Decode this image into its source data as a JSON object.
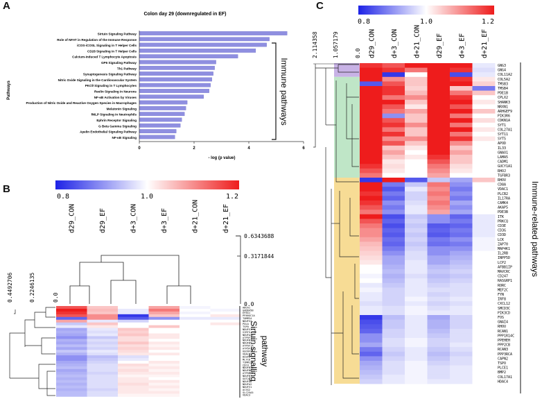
{
  "figure": {
    "panelA": {
      "letter": "A",
      "title": "Colon day 29 (downregulated in  EF)",
      "side_label": "Immune pathways",
      "chart_data": {
        "type": "bar",
        "title": "Colon day 29 (downregulated in  EF)",
        "xlabel": "- log (p value)",
        "ylabel": "Pathways",
        "xlim": [
          0,
          6
        ],
        "xticks": [
          "0",
          "2",
          "4",
          "6"
        ],
        "orientation": "horizontal",
        "bar_color": "#8f8fe0",
        "categories": [
          "Sirtuin Signaling Pathway",
          "Role of NFAT in Regulation of the Immune Response",
          "iCOS-iCOSL Signaling in T Helper Cells",
          "CD28 Signaling in T Helper Cells",
          "Calcium-induced T Lymphocyte Apoptosis",
          "GP6 Signaling Pathway",
          "Th1 Pathway",
          "Synaptogenesis Signaling Pathway",
          "Nitric Oxide Signaling in the Cardiovascular System",
          "PKCθ Signaling in T Lymphocytes",
          "Reelin Signaling in Neurons",
          "NF-κB Activation by Viruses",
          "Production of Nitric Oxide and Reactive Oxygen Species in Macrophages",
          "Melatonin Signaling",
          "fMLP Signaling in Neutrophils",
          "Ephrin Receptor Signaling",
          "G Beta Gamma Signaling",
          "Apelin Endothelial Signaling Pathway",
          "NF-κB Signaling"
        ],
        "values": [
          5.4,
          4.75,
          4.65,
          4.25,
          3.6,
          2.8,
          2.75,
          2.7,
          2.65,
          2.6,
          2.55,
          2.35,
          1.75,
          1.7,
          1.65,
          1.55,
          1.5,
          1.35,
          1.3
        ]
      }
    },
    "panelB": {
      "letter": "B",
      "side_label_1": "Sirtuin signalling",
      "side_label_2": "pathway",
      "chart_data": {
        "type": "heatmap",
        "colorbar": {
          "min_label": "0.8",
          "mid_label": "1.0",
          "max_label": "1.2",
          "low_color": "#1d22e6",
          "mid_color": "#ffffff",
          "high_color": "#ee1c1c"
        },
        "columns": [
          "d29_CON",
          "d29_EF",
          "d+3_CON",
          "d+3_EF",
          "d+21_CON",
          "d+21_EF"
        ],
        "col_tree_labels": [
          "0.6343688",
          "0.3171844",
          "0.0"
        ],
        "row_tree_labels": [
          "0.4492706",
          "0.2246135",
          "0.0"
        ],
        "rows": [
          "ABCA1",
          "GADD45B",
          "EPAS1",
          "PPARGC1A",
          "TOMM34",
          "NDUFS2",
          "POLA",
          "TSPO",
          "NDUFS1",
          "SIRT5",
          "NDUFA11",
          "ATP5F1",
          "NDUFB1",
          "NDUFB5",
          "ATP5F1A",
          "ATP5F1D",
          "UQCRFS1",
          "VDAC1",
          "DUSP6",
          "MLYCD",
          "TIMM17A",
          "CDC4",
          "NDUFB11",
          "NDUFB6",
          "ATP5ME1",
          "NDUFB7",
          "GOT2",
          "NDUFA8",
          "NDUFA2",
          "NDUFV1",
          "ACSS2",
          "SLC25A5",
          "VDAC3"
        ],
        "values": [
          [
            1.15,
            1.05,
            1.0,
            1.08,
            0.99,
            1.0
          ],
          [
            1.2,
            1.06,
            0.98,
            1.12,
            1.0,
            0.99
          ],
          [
            1.18,
            1.05,
            0.98,
            1.08,
            0.99,
            1.0
          ],
          [
            1.15,
            1.1,
            0.82,
            1.05,
            1.0,
            1.02
          ],
          [
            0.86,
            1.1,
            0.85,
            0.9,
            0.98,
            0.98
          ],
          [
            1.08,
            0.98,
            0.96,
            1.0,
            1.0,
            1.0
          ],
          [
            0.95,
            1.05,
            1.0,
            1.0,
            1.0,
            1.02
          ],
          [
            0.98,
            1.02,
            1.0,
            1.05,
            1.0,
            1.0
          ],
          [
            0.92,
            0.98,
            1.05,
            1.0,
            1.0,
            1.0
          ],
          [
            0.93,
            0.97,
            1.04,
            1.0,
            1.0,
            1.0
          ],
          [
            0.92,
            0.98,
            1.05,
            1.02,
            1.0,
            1.0
          ],
          [
            0.9,
            0.95,
            1.03,
            1.02,
            1.0,
            1.0
          ],
          [
            0.93,
            0.97,
            1.03,
            1.0,
            1.0,
            1.0
          ],
          [
            0.92,
            0.96,
            1.05,
            1.02,
            1.0,
            1.0
          ],
          [
            0.94,
            0.97,
            1.03,
            1.01,
            1.0,
            1.0
          ],
          [
            0.92,
            0.96,
            1.04,
            1.02,
            1.0,
            1.0
          ],
          [
            0.95,
            0.98,
            1.03,
            1.0,
            1.0,
            1.0
          ],
          [
            0.93,
            0.97,
            1.02,
            1.02,
            1.0,
            1.0
          ],
          [
            0.9,
            0.94,
            0.97,
            1.0,
            1.0,
            1.0
          ],
          [
            0.9,
            0.95,
            0.98,
            1.0,
            1.0,
            1.0
          ],
          [
            0.92,
            0.96,
            1.0,
            1.02,
            1.0,
            1.0
          ],
          [
            0.93,
            0.97,
            1.03,
            1.01,
            1.0,
            1.0
          ],
          [
            0.94,
            0.97,
            1.02,
            1.02,
            1.0,
            1.0
          ],
          [
            0.92,
            0.97,
            1.03,
            1.01,
            1.0,
            1.0
          ],
          [
            0.93,
            0.96,
            1.02,
            1.02,
            1.0,
            1.0
          ],
          [
            0.94,
            0.97,
            1.01,
            1.01,
            1.0,
            1.0
          ],
          [
            0.93,
            0.97,
            1.02,
            1.0,
            1.0,
            1.0
          ],
          [
            0.94,
            0.97,
            1.02,
            1.02,
            1.0,
            1.0
          ],
          [
            0.93,
            0.97,
            1.03,
            1.01,
            1.0,
            1.0
          ],
          [
            0.94,
            0.97,
            1.02,
            1.02,
            1.0,
            1.0
          ],
          [
            0.93,
            0.96,
            1.02,
            1.01,
            1.0,
            1.0
          ],
          [
            0.94,
            0.97,
            1.02,
            1.02,
            1.0,
            1.0
          ],
          [
            0.94,
            0.97,
            1.01,
            1.01,
            1.0,
            1.0
          ]
        ]
      }
    },
    "panelC": {
      "letter": "C",
      "side_label": "Immune-related pathways",
      "chart_data": {
        "type": "heatmap",
        "colorbar": {
          "min_label": "0.8",
          "mid_label": "1.0",
          "max_label": "1.2",
          "low_color": "#1d22e6",
          "mid_color": "#ffffff",
          "high_color": "#ee1c1c"
        },
        "columns": [
          "d29_CON",
          "d+3_CON",
          "d+21_CON",
          "d29_EF",
          "d+3_EF",
          "d+21_EF"
        ],
        "row_tree_labels": [
          "2.114358",
          "1.057179",
          "0.0"
        ],
        "cluster_colors": [
          "#c8b2e6",
          "#bfe6c7",
          "#f7dc95"
        ],
        "rows": [
          "GNG3",
          "GNG4",
          "COL11A2",
          "COL5A2",
          "TMSB3",
          "TMSB4",
          "PDE1B",
          "CPLX2",
          "SHANK3",
          "NRXN1",
          "ARHGEF9",
          "PIK3R6",
          "CDKN1A",
          "SYT1",
          "COL27A1",
          "SYT11",
          "SYT5",
          "APOD",
          "IL33",
          "GNAO1",
          "LAMA5",
          "CADM1",
          "GUCY1A1",
          "RHOJ",
          "TGFBR3",
          "RHOV",
          "CD8A",
          "VDAC1",
          "PLCB2",
          "IL17RA",
          "CAMK4",
          "AKAP5",
          "PDE3B",
          "ITK",
          "PRKCQ",
          "CD3E",
          "CD3G",
          "CD3D",
          "LCK",
          "ZAP70",
          "MAP4K1",
          "IL2RB",
          "INPP5D",
          "LCP2",
          "AFBB1IP",
          "MAVCRC",
          "CD247",
          "RASGRP1",
          "RORC",
          "MEF2C",
          "FYN",
          "IRF8",
          "CXCL12",
          "SMCD3C",
          "PIK3CD",
          "FOS",
          "GNAI4",
          "RHOU",
          "RCAN1",
          "PPP1R14C",
          "PPEHEH",
          "PPP2CB",
          "RCAN3",
          "PPP3RCA",
          "CAPN2",
          "TSPO",
          "PLCE1",
          "BMP2",
          "COL17A1",
          "HDAC4"
        ],
        "values": [
          [
            1.18,
            1.15,
            1.2,
            1.2,
            1.2,
            0.98
          ],
          [
            1.2,
            1.18,
            1.12,
            1.2,
            1.18,
            0.97
          ],
          [
            1.2,
            0.82,
            1.0,
            1.2,
            0.84,
            0.98
          ],
          [
            1.2,
            1.1,
            1.05,
            1.2,
            1.18,
            1.02
          ],
          [
            0.85,
            1.15,
            1.05,
            1.2,
            1.2,
            1.04
          ],
          [
            1.2,
            1.18,
            1.04,
            1.2,
            1.05,
            0.88
          ],
          [
            1.2,
            1.18,
            1.06,
            1.2,
            1.12,
            1.05
          ],
          [
            1.2,
            1.12,
            1.1,
            1.2,
            1.18,
            1.0
          ],
          [
            1.2,
            1.2,
            1.05,
            1.2,
            1.2,
            1.02
          ],
          [
            1.2,
            1.15,
            1.02,
            1.2,
            1.15,
            1.0
          ],
          [
            1.2,
            1.12,
            1.08,
            1.2,
            1.2,
            1.05
          ],
          [
            1.2,
            0.9,
            1.05,
            1.2,
            1.12,
            1.0
          ],
          [
            1.2,
            1.15,
            1.05,
            1.2,
            1.2,
            1.03
          ],
          [
            1.2,
            1.18,
            1.1,
            1.2,
            1.12,
            1.0
          ],
          [
            1.2,
            1.12,
            1.05,
            1.2,
            1.2,
            1.02
          ],
          [
            1.2,
            1.18,
            1.05,
            1.2,
            1.12,
            1.0
          ],
          [
            1.2,
            1.1,
            1.1,
            1.2,
            1.18,
            1.02
          ],
          [
            1.2,
            1.15,
            1.05,
            1.2,
            1.1,
            1.0
          ],
          [
            1.2,
            1.05,
            1.02,
            1.2,
            1.05,
            1.0
          ],
          [
            1.2,
            1.08,
            1.0,
            1.2,
            1.08,
            1.0
          ],
          [
            1.2,
            1.05,
            1.02,
            1.18,
            1.05,
            1.0
          ],
          [
            1.2,
            1.02,
            1.0,
            1.15,
            1.05,
            1.0
          ],
          [
            1.18,
            1.03,
            1.0,
            1.12,
            1.03,
            1.0
          ],
          [
            1.15,
            1.02,
            1.0,
            1.1,
            1.02,
            1.0
          ],
          [
            1.12,
            1.0,
            1.0,
            1.08,
            1.0,
            1.0
          ],
          [
            0.82,
            1.2,
            0.85,
            0.95,
            0.92,
            1.05
          ],
          [
            1.2,
            0.88,
            0.95,
            1.12,
            0.9,
            1.0
          ],
          [
            1.2,
            0.85,
            0.98,
            1.1,
            0.88,
            1.0
          ],
          [
            1.18,
            0.88,
            0.96,
            1.12,
            0.9,
            1.0
          ],
          [
            1.2,
            0.86,
            0.96,
            1.1,
            0.88,
            1.0
          ],
          [
            1.18,
            0.9,
            0.97,
            1.12,
            0.92,
            1.0
          ],
          [
            1.15,
            0.88,
            0.98,
            1.1,
            0.9,
            1.0
          ],
          [
            1.12,
            0.9,
            0.98,
            1.08,
            0.92,
            1.0
          ],
          [
            1.2,
            0.84,
            0.95,
            0.9,
            0.86,
            0.98
          ],
          [
            1.15,
            0.86,
            0.96,
            0.9,
            0.88,
            0.98
          ],
          [
            1.12,
            0.84,
            0.95,
            0.85,
            0.86,
            0.98
          ],
          [
            1.1,
            0.86,
            0.96,
            0.86,
            0.88,
            0.98
          ],
          [
            1.1,
            0.85,
            0.95,
            0.85,
            0.87,
            0.98
          ],
          [
            1.08,
            0.87,
            0.96,
            0.88,
            0.9,
            0.99
          ],
          [
            1.06,
            0.86,
            0.95,
            0.87,
            0.88,
            0.99
          ],
          [
            1.05,
            0.88,
            0.96,
            0.9,
            0.9,
            0.99
          ],
          [
            1.04,
            0.9,
            0.97,
            0.9,
            0.92,
            1.0
          ],
          [
            1.03,
            0.92,
            0.97,
            0.92,
            0.93,
            1.0
          ],
          [
            1.02,
            0.92,
            0.98,
            0.92,
            0.94,
            1.0
          ],
          [
            1.0,
            0.93,
            0.98,
            0.94,
            0.95,
            1.0
          ],
          [
            1.0,
            0.94,
            0.98,
            0.95,
            0.96,
            1.0
          ],
          [
            0.99,
            0.93,
            0.97,
            0.94,
            0.95,
            1.0
          ],
          [
            1.0,
            0.94,
            0.98,
            0.95,
            0.96,
            1.0
          ],
          [
            0.98,
            0.95,
            0.98,
            0.96,
            0.97,
            1.0
          ],
          [
            0.99,
            0.96,
            0.98,
            0.97,
            0.97,
            1.0
          ],
          [
            0.98,
            0.96,
            0.98,
            0.96,
            0.97,
            1.0
          ],
          [
            0.98,
            0.96,
            0.99,
            0.97,
            0.98,
            1.0
          ],
          [
            0.97,
            0.96,
            0.98,
            0.96,
            0.97,
            1.0
          ],
          [
            0.98,
            0.97,
            0.99,
            0.97,
            0.98,
            1.0
          ],
          [
            0.98,
            0.97,
            0.99,
            0.98,
            0.98,
            1.0
          ],
          [
            0.82,
            0.94,
            0.98,
            0.92,
            0.96,
            1.0
          ],
          [
            0.84,
            0.95,
            0.98,
            0.93,
            0.96,
            1.0
          ],
          [
            0.85,
            0.95,
            0.98,
            0.93,
            0.96,
            1.0
          ],
          [
            0.86,
            0.96,
            0.98,
            0.94,
            0.97,
            1.0
          ],
          [
            0.9,
            0.96,
            0.98,
            0.95,
            0.97,
            1.0
          ],
          [
            0.9,
            0.97,
            0.99,
            0.96,
            0.97,
            1.0
          ],
          [
            0.92,
            0.97,
            0.99,
            0.96,
            0.98,
            1.0
          ],
          [
            0.88,
            0.96,
            0.98,
            0.95,
            0.97,
            1.0
          ],
          [
            0.86,
            0.95,
            0.98,
            0.94,
            0.96,
            1.0
          ],
          [
            0.9,
            0.96,
            0.98,
            0.95,
            0.97,
            1.0
          ],
          [
            0.92,
            0.97,
            0.99,
            0.96,
            0.97,
            1.0
          ],
          [
            0.93,
            0.97,
            0.99,
            0.97,
            0.98,
            1.0
          ],
          [
            0.94,
            0.97,
            0.99,
            0.97,
            0.98,
            1.0
          ],
          [
            0.95,
            0.98,
            0.99,
            0.97,
            0.98,
            1.0
          ],
          [
            0.96,
            0.98,
            0.99,
            0.98,
            0.98,
            1.0
          ]
        ]
      }
    }
  }
}
